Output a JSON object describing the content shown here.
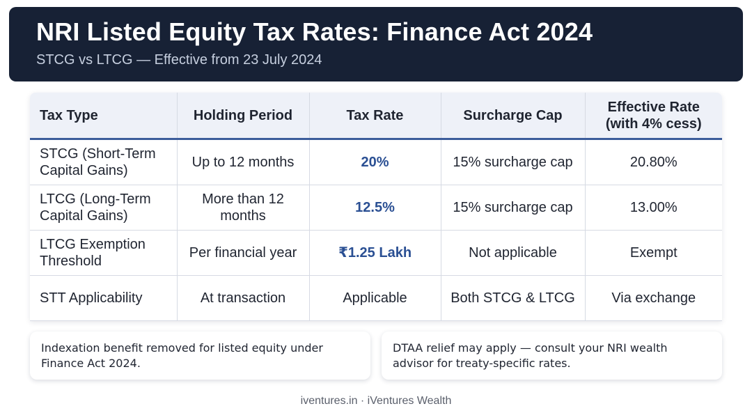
{
  "header": {
    "title": "NRI Listed Equity Tax Rates: Finance Act 2024",
    "subtitle": "STCG vs LTCG — Effective from 23 July 2024"
  },
  "table": {
    "columns": [
      "Tax Type",
      "Holding Period",
      "Tax Rate",
      "Surcharge Cap",
      "Effective Rate\n(with 4% cess)"
    ],
    "rows": [
      [
        "STCG (Short-Term Capital Gains)",
        "Up to 12 months",
        "20%",
        "15% surcharge cap",
        "20.80%"
      ],
      [
        "LTCG (Long-Term Capital Gains)",
        "More than 12 months",
        "12.5%",
        "15% surcharge cap",
        "13.00%"
      ],
      [
        "LTCG Exemption Threshold",
        "Per financial year",
        "₹1.25 Lakh",
        "Not applicable",
        "Exempt"
      ],
      [
        "STT Applicability",
        "At transaction",
        "Applicable",
        "Both STCG & LTCG",
        "Via exchange"
      ]
    ]
  },
  "notes": {
    "left": "Indexation benefit removed for listed equity under Finance Act 2024.",
    "right": "DTAA relief may apply — consult your NRI wealth advisor for treaty-specific rates."
  },
  "footer": "iventures.in · iVentures Wealth",
  "colors": {
    "header_bg": "#172135",
    "table_header_bg": "#eef1f8",
    "accent": "#2a4f93"
  }
}
